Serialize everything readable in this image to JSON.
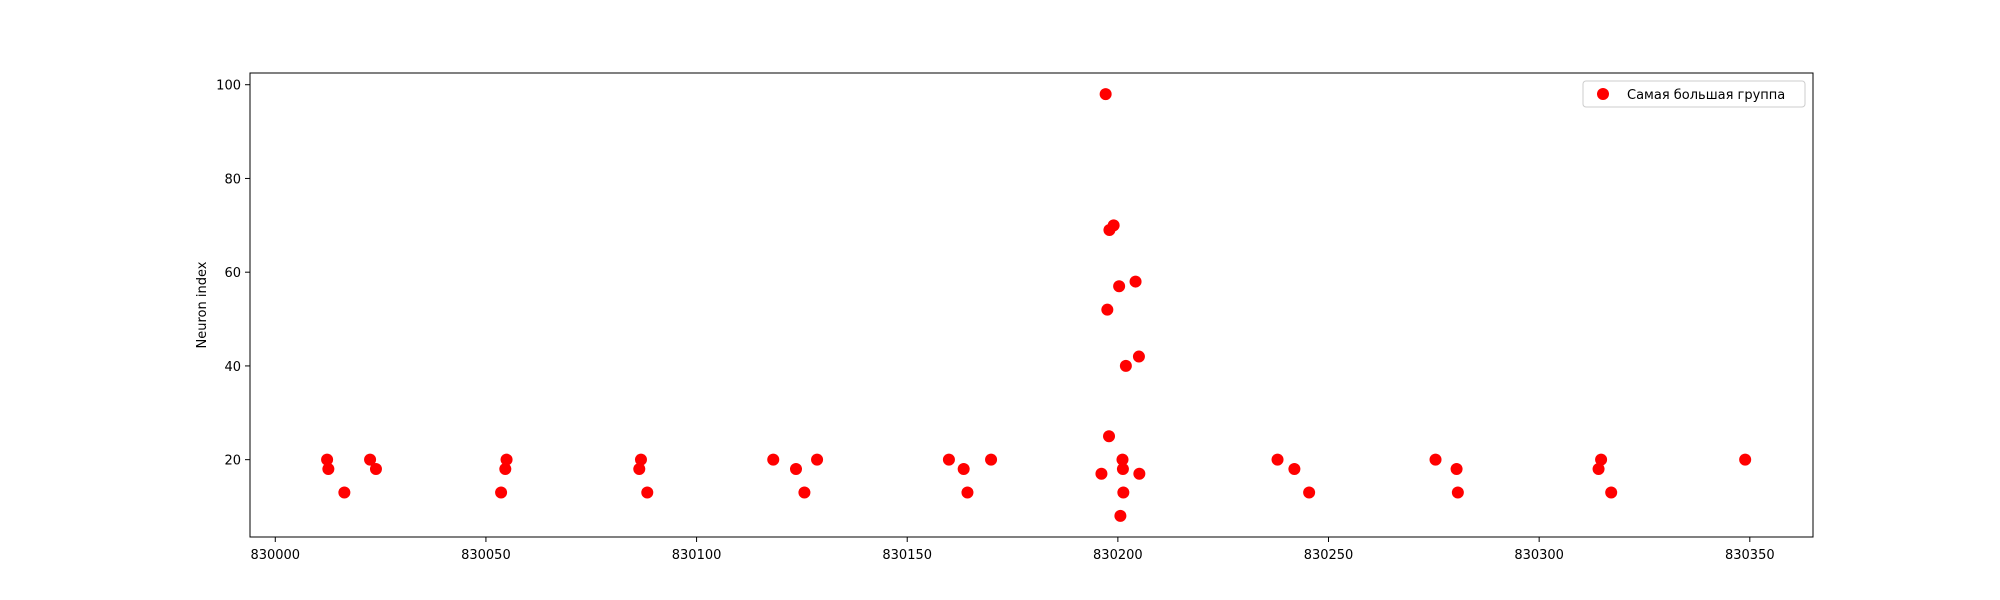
{
  "chart_data": {
    "type": "scatter",
    "title": "",
    "xlabel": "",
    "ylabel": "Neuron index",
    "xlim": [
      829994,
      830365
    ],
    "ylim": [
      3.5,
      102.5
    ],
    "xticks": [
      830000,
      830050,
      830100,
      830150,
      830200,
      830250,
      830300,
      830350
    ],
    "xtick_labels": [
      "830000",
      "830050",
      "830100",
      "830150",
      "830200",
      "830250",
      "830300",
      "830350"
    ],
    "yticks": [
      20,
      40,
      60,
      80,
      100
    ],
    "ytick_labels": [
      "20",
      "40",
      "60",
      "80",
      "100"
    ],
    "grid": false,
    "legend": {
      "position": "upper right",
      "entries": [
        "Самая большая группа"
      ]
    },
    "series": [
      {
        "name": "Самая большая группа",
        "color": "#ff0000",
        "marker": "circle",
        "points": [
          [
            830012.3,
            20
          ],
          [
            830012.6,
            18
          ],
          [
            830016.4,
            13
          ],
          [
            830022.5,
            20
          ],
          [
            830023.9,
            18
          ],
          [
            830053.6,
            13
          ],
          [
            830054.6,
            18
          ],
          [
            830054.9,
            20
          ],
          [
            830086.4,
            18
          ],
          [
            830086.8,
            20
          ],
          [
            830088.3,
            13
          ],
          [
            830118.2,
            20
          ],
          [
            830123.6,
            18
          ],
          [
            830125.6,
            13
          ],
          [
            830128.6,
            20
          ],
          [
            830159.9,
            20
          ],
          [
            830163.4,
            18
          ],
          [
            830164.3,
            13
          ],
          [
            830169.9,
            20
          ],
          [
            830196.1,
            17
          ],
          [
            830197.1,
            98
          ],
          [
            830197.5,
            52
          ],
          [
            830197.9,
            25
          ],
          [
            830198.0,
            69
          ],
          [
            830199.0,
            70
          ],
          [
            830200.3,
            57
          ],
          [
            830200.6,
            8
          ],
          [
            830201.1,
            20
          ],
          [
            830201.2,
            18
          ],
          [
            830201.3,
            13
          ],
          [
            830201.9,
            40
          ],
          [
            830204.2,
            58
          ],
          [
            830205.0,
            42
          ],
          [
            830205.1,
            17
          ],
          [
            830237.9,
            20
          ],
          [
            830241.9,
            18
          ],
          [
            830245.4,
            13
          ],
          [
            830275.4,
            20
          ],
          [
            830280.4,
            18
          ],
          [
            830280.7,
            13
          ],
          [
            830314.1,
            18
          ],
          [
            830314.7,
            20
          ],
          [
            830317.1,
            13
          ],
          [
            830348.9,
            20
          ]
        ]
      }
    ]
  }
}
